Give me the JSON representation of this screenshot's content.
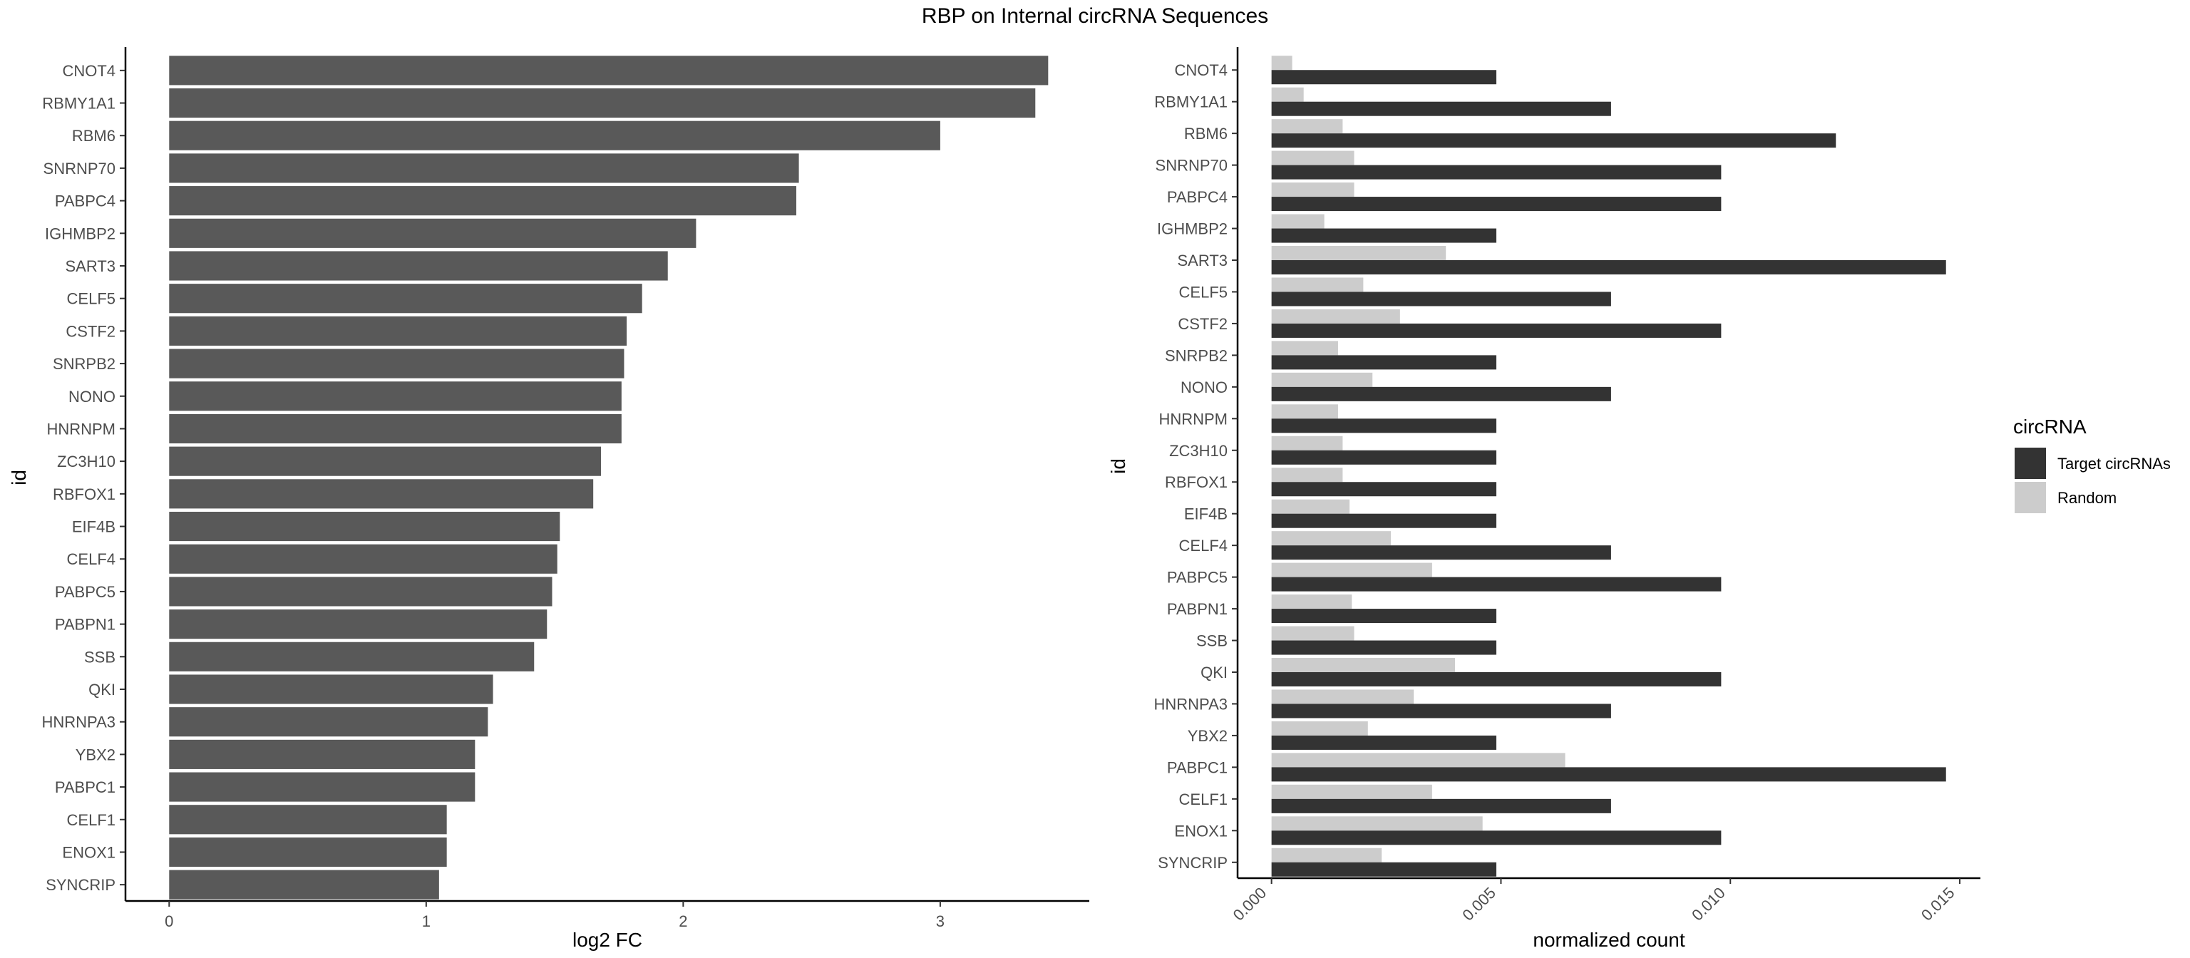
{
  "figure": {
    "title": "RBP on Internal circRNA Sequences"
  },
  "chart_data": [
    {
      "type": "bar",
      "orientation": "horizontal",
      "categories": [
        "CNOT4",
        "RBMY1A1",
        "RBM6",
        "SNRNP70",
        "PABPC4",
        "IGHMBP2",
        "SART3",
        "CELF5",
        "CSTF2",
        "SNRPB2",
        "NONO",
        "HNRNPM",
        "ZC3H10",
        "RBFOX1",
        "EIF4B",
        "CELF4",
        "PABPC5",
        "PABPN1",
        "SSB",
        "QKI",
        "HNRNPA3",
        "YBX2",
        "PABPC1",
        "CELF1",
        "ENOX1",
        "SYNCRIP"
      ],
      "values": [
        3.42,
        3.37,
        3.0,
        2.45,
        2.44,
        2.05,
        1.94,
        1.84,
        1.78,
        1.77,
        1.76,
        1.76,
        1.68,
        1.65,
        1.52,
        1.51,
        1.49,
        1.47,
        1.42,
        1.26,
        1.24,
        1.19,
        1.19,
        1.08,
        1.08,
        1.05
      ],
      "xlabel": "log2 FC",
      "ylabel": "id",
      "xlim": [
        -0.17,
        3.58
      ],
      "xticks": [
        "0",
        "1",
        "2",
        "3"
      ],
      "xtick_values": [
        0,
        1,
        2,
        3
      ],
      "bar_color": "#595959",
      "grid": false
    },
    {
      "type": "bar",
      "orientation": "horizontal",
      "grouped": true,
      "categories": [
        "CNOT4",
        "RBMY1A1",
        "RBM6",
        "SNRNP70",
        "PABPC4",
        "IGHMBP2",
        "SART3",
        "CELF5",
        "CSTF2",
        "SNRPB2",
        "NONO",
        "HNRNPM",
        "ZC3H10",
        "RBFOX1",
        "EIF4B",
        "CELF4",
        "PABPC5",
        "PABPN1",
        "SSB",
        "QKI",
        "HNRNPA3",
        "YBX2",
        "PABPC1",
        "CELF1",
        "ENOX1",
        "SYNCRIP"
      ],
      "series": [
        {
          "name": "Target circRNAs",
          "color": "#333333",
          "values": [
            0.0049,
            0.0074,
            0.0123,
            0.0098,
            0.0098,
            0.0049,
            0.0147,
            0.0074,
            0.0098,
            0.0049,
            0.0074,
            0.0049,
            0.0049,
            0.0049,
            0.0049,
            0.0074,
            0.0098,
            0.0049,
            0.0049,
            0.0098,
            0.0074,
            0.0049,
            0.0147,
            0.0074,
            0.0098,
            0.0049
          ]
        },
        {
          "name": "Random",
          "color": "#cccccc",
          "values": [
            0.00045,
            0.0007,
            0.00155,
            0.0018,
            0.0018,
            0.00115,
            0.0038,
            0.002,
            0.0028,
            0.00145,
            0.0022,
            0.00145,
            0.00155,
            0.00155,
            0.0017,
            0.0026,
            0.0035,
            0.00175,
            0.0018,
            0.004,
            0.0031,
            0.0021,
            0.0064,
            0.0035,
            0.0046,
            0.0024
          ]
        }
      ],
      "xlabel": "normalized count",
      "ylabel": "id",
      "xlim": [
        -0.00074,
        0.01545
      ],
      "xticks": [
        "0.000",
        "0.005",
        "0.010",
        "0.015"
      ],
      "xtick_values": [
        0,
        0.005,
        0.01,
        0.015
      ],
      "legend": {
        "title": "circRNA",
        "position": "right"
      },
      "grid": false
    }
  ]
}
